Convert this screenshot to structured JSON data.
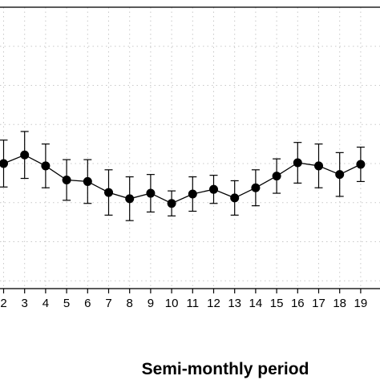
{
  "chart_data": {
    "type": "line",
    "xlabel": "Semi-monthly period",
    "ylabel": "",
    "categories": [
      "2",
      "3",
      "4",
      "5",
      "6",
      "7",
      "8",
      "9",
      "10",
      "11",
      "12",
      "13",
      "14",
      "15",
      "16",
      "17",
      "18",
      "19"
    ],
    "x": [
      2,
      3,
      4,
      5,
      6,
      7,
      8,
      9,
      10,
      11,
      12,
      13,
      14,
      15,
      16,
      17,
      18,
      19
    ],
    "series": [
      {
        "values": [
          0.0,
          0.11,
          -0.03,
          -0.21,
          -0.23,
          -0.37,
          -0.45,
          -0.38,
          -0.51,
          -0.39,
          -0.33,
          -0.44,
          -0.31,
          -0.16,
          0.01,
          -0.03,
          -0.14,
          -0.01
        ],
        "error": [
          0.3,
          0.3,
          0.28,
          0.26,
          0.28,
          0.29,
          0.28,
          0.24,
          0.16,
          0.22,
          0.18,
          0.22,
          0.23,
          0.22,
          0.26,
          0.28,
          0.28,
          0.22
        ]
      }
    ],
    "xlim": [
      1.6,
      19.7
    ],
    "ylim": [
      -1.8,
      1.8
    ],
    "grid": true,
    "grid_style": "dotted",
    "marker": "filled-circle",
    "errorbars": true,
    "colors": {
      "line": "#000000",
      "grid": "#c8c8c8",
      "frame": "#000000"
    }
  }
}
